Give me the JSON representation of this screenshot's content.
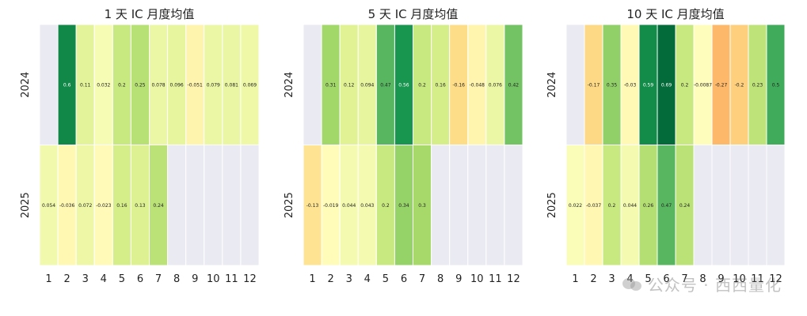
{
  "chart_data": [
    {
      "type": "heatmap",
      "title": "1 天 IC 月度均值",
      "x": [
        "1",
        "2",
        "3",
        "4",
        "5",
        "6",
        "7",
        "8",
        "9",
        "10",
        "11",
        "12"
      ],
      "y": [
        "2024",
        "2025"
      ],
      "values": [
        [
          null,
          0.6,
          0.11,
          0.032,
          0.2,
          0.25,
          0.078,
          0.096,
          -0.051,
          0.079,
          0.081,
          0.069
        ],
        [
          0.054,
          -0.036,
          0.072,
          -0.023,
          0.16,
          0.13,
          0.24,
          null,
          null,
          null,
          null,
          null
        ]
      ]
    },
    {
      "type": "heatmap",
      "title": "5 天 IC 月度均值",
      "x": [
        "1",
        "2",
        "3",
        "4",
        "5",
        "6",
        "7",
        "8",
        "9",
        "10",
        "11",
        "12"
      ],
      "y": [
        "2024",
        "2025"
      ],
      "values": [
        [
          null,
          0.31,
          0.12,
          0.094,
          0.47,
          0.56,
          0.2,
          0.16,
          -0.16,
          -0.048,
          0.076,
          0.42
        ],
        [
          -0.13,
          -0.019,
          0.044,
          0.043,
          0.2,
          0.34,
          0.3,
          null,
          null,
          null,
          null,
          null
        ]
      ]
    },
    {
      "type": "heatmap",
      "title": "10 天 IC 月度均值",
      "x": [
        "1",
        "2",
        "3",
        "4",
        "5",
        "6",
        "7",
        "8",
        "9",
        "10",
        "11",
        "12"
      ],
      "y": [
        "2024",
        "2025"
      ],
      "values": [
        [
          null,
          -0.17,
          0.35,
          -0.03,
          0.59,
          0.69,
          0.2,
          -0.0087,
          -0.27,
          -0.2,
          0.23,
          0.5
        ],
        [
          0.022,
          -0.037,
          0.2,
          0.044,
          0.26,
          0.47,
          0.24,
          null,
          null,
          null,
          null,
          null
        ]
      ]
    }
  ],
  "colors": {
    "missing": "#eaeaf2",
    "scale_low": "#fdae61",
    "scale_mid": "#ffffbf",
    "scale_high": "#006837"
  },
  "watermark": {
    "text": "公众号 · 西西量化",
    "icon": "wechat-icon"
  }
}
